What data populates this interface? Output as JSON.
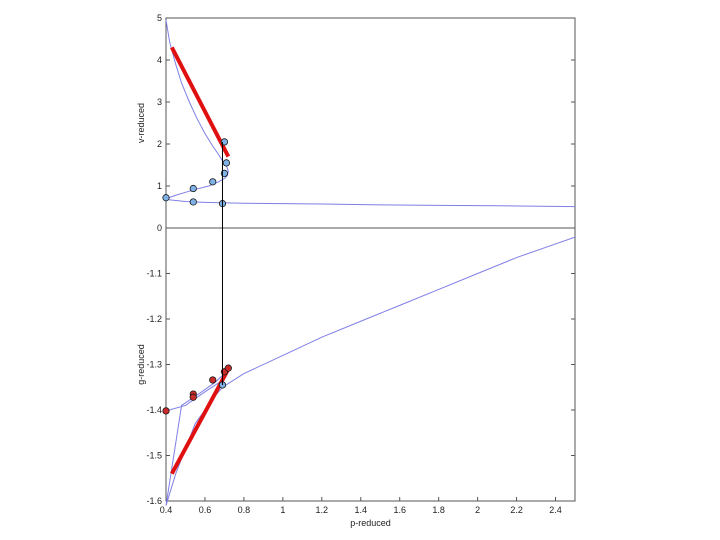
{
  "chart_data": [
    {
      "type": "line",
      "title": "",
      "xlabel": "",
      "ylabel": "v-reduced",
      "xlim": [
        0.4,
        2.5
      ],
      "ylim": [
        0,
        5
      ],
      "x_ticks": [],
      "y_ticks": [
        "0",
        "1",
        "2",
        "3",
        "4",
        "5"
      ],
      "grid": false,
      "colors": {
        "curve": "#7f7fe6",
        "points": "#7fb2e6",
        "tangent": "#e01010",
        "tie_line": "#000000"
      },
      "series": [
        {
          "points": [
            [
              0.4,
              4.95
            ],
            [
              0.42,
              4.4
            ],
            [
              0.45,
              3.9
            ],
            [
              0.48,
              3.45
            ],
            [
              0.52,
              3.0
            ],
            [
              0.56,
              2.6
            ],
            [
              0.6,
              2.25
            ],
            [
              0.64,
              1.95
            ],
            [
              0.67,
              1.75
            ],
            [
              0.69,
              1.6
            ],
            [
              0.71,
              1.48
            ],
            [
              0.72,
              1.35
            ],
            [
              0.715,
              1.25
            ],
            [
              0.7,
              1.18
            ],
            [
              0.67,
              1.1
            ],
            [
              0.62,
              1.0
            ],
            [
              0.56,
              0.93
            ],
            [
              0.5,
              0.85
            ],
            [
              0.45,
              0.78
            ],
            [
              0.42,
              0.73
            ],
            [
              0.4,
              0.7
            ],
            [
              0.42,
              0.67
            ],
            [
              0.5,
              0.63
            ],
            [
              0.6,
              0.61
            ],
            [
              0.8,
              0.59
            ],
            [
              1.0,
              0.58
            ],
            [
              1.2,
              0.57
            ],
            [
              1.5,
              0.55
            ],
            [
              1.8,
              0.54
            ],
            [
              2.1,
              0.53
            ],
            [
              2.5,
              0.51
            ]
          ]
        }
      ],
      "markers": [
        [
          0.4,
          0.72
        ],
        [
          0.54,
          0.94
        ],
        [
          0.54,
          0.62
        ],
        [
          0.64,
          1.1
        ],
        [
          0.69,
          0.58
        ],
        [
          0.7,
          1.3
        ],
        [
          0.71,
          1.55
        ],
        [
          0.7,
          2.05
        ]
      ],
      "tangent_line": [
        [
          0.43,
          4.3
        ],
        [
          0.72,
          1.7
        ]
      ],
      "tie_line_x": 0.69
    },
    {
      "type": "line",
      "title": "",
      "xlabel": "p-reduced",
      "ylabel": "g-reduced",
      "xlim": [
        0.4,
        2.5
      ],
      "ylim": [
        -1.6,
        -1.0
      ],
      "x_ticks": [
        "0.4",
        "0.6",
        "0.8",
        "1",
        "1.2",
        "1.4",
        "1.6",
        "1.8",
        "2",
        "2.2",
        "2.4"
      ],
      "y_ticks": [
        "-1.1",
        "-1.2",
        "-1.3",
        "-1.4",
        "-1.5",
        "-1.6"
      ],
      "grid": false,
      "colors": {
        "curve": "#7f7fe6",
        "points_blue": "#7fb2e6",
        "points_red": "#cc2b2b",
        "tangent": "#e01010"
      },
      "series": [
        {
          "points": [
            [
              0.4,
              -1.402
            ],
            [
              0.5,
              -1.39
            ],
            [
              0.6,
              -1.36
            ],
            [
              0.69,
              -1.335
            ],
            [
              0.72,
              -1.312
            ],
            [
              0.7,
              -1.32
            ],
            [
              0.65,
              -1.34
            ],
            [
              0.55,
              -1.37
            ],
            [
              0.48,
              -1.39
            ],
            [
              0.4,
              -1.61
            ],
            [
              0.45,
              -1.54
            ],
            [
              0.55,
              -1.43
            ],
            [
              0.65,
              -1.37
            ],
            [
              0.69,
              -1.35
            ],
            [
              0.8,
              -1.32
            ],
            [
              1.0,
              -1.28
            ],
            [
              1.2,
              -1.24
            ],
            [
              1.4,
              -1.205
            ],
            [
              1.6,
              -1.17
            ],
            [
              1.8,
              -1.135
            ],
            [
              2.0,
              -1.1
            ],
            [
              2.2,
              -1.065
            ],
            [
              2.4,
              -1.035
            ],
            [
              2.5,
              -1.02
            ]
          ]
        }
      ],
      "markers_blue": [
        [
          0.69,
          -1.345
        ]
      ],
      "markers_red": [
        [
          0.4,
          -1.402
        ],
        [
          0.54,
          -1.365
        ],
        [
          0.54,
          -1.372
        ],
        [
          0.64,
          -1.334
        ],
        [
          0.7,
          -1.316
        ],
        [
          0.72,
          -1.308
        ]
      ],
      "tangent_line": [
        [
          0.43,
          -1.54
        ],
        [
          0.72,
          -1.31
        ]
      ]
    }
  ]
}
